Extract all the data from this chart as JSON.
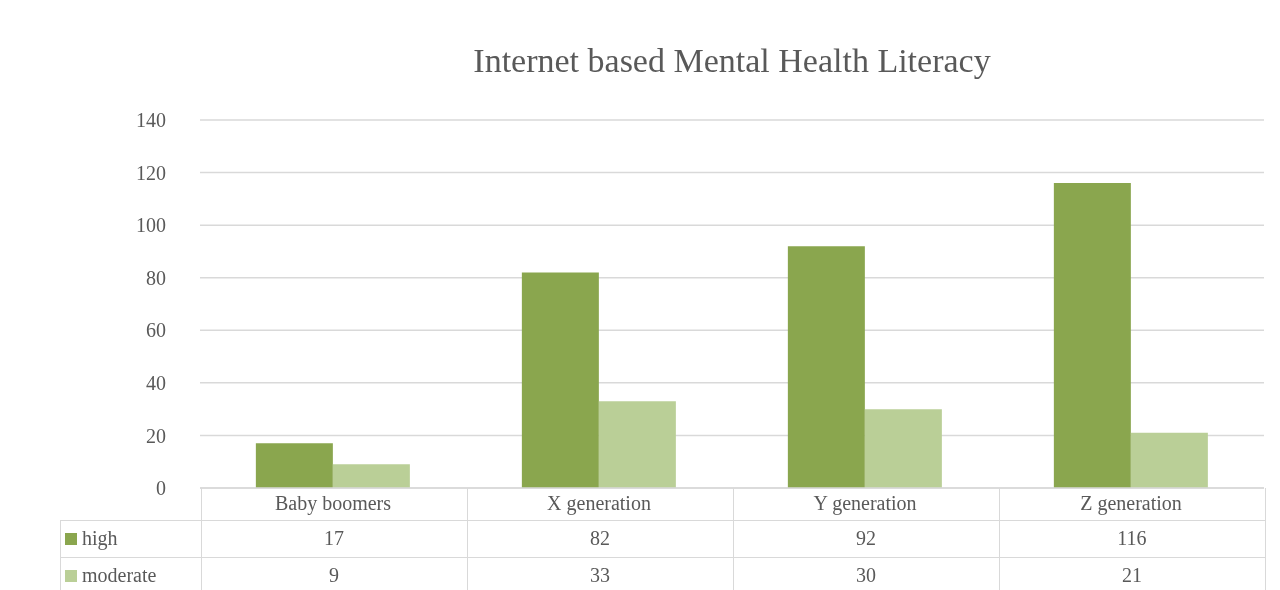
{
  "chart_data": {
    "type": "bar",
    "title": "Internet based Mental Health Literacy",
    "categories": [
      "Baby boomers",
      "X generation",
      "Y generation",
      "Z generation"
    ],
    "series": [
      {
        "name": "high",
        "color": "#8aa64e",
        "values": [
          17,
          82,
          92,
          116
        ]
      },
      {
        "name": "moderate",
        "color": "#bacf97",
        "values": [
          9,
          33,
          30,
          21
        ]
      }
    ],
    "ylim": [
      0,
      140
    ],
    "yticks": [
      0,
      20,
      40,
      60,
      80,
      100,
      120,
      140
    ],
    "grid": "y",
    "legend": "bottom",
    "data_labels": true
  }
}
